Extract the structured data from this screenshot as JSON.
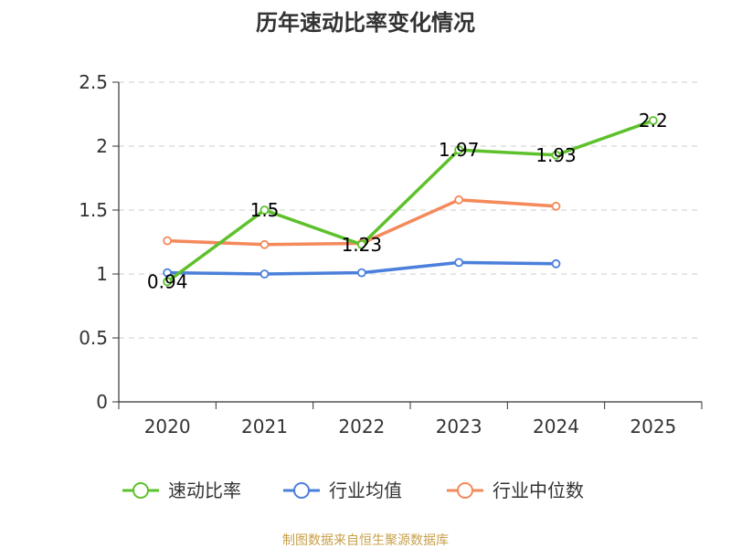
{
  "chart_data": {
    "type": "line",
    "title": "历年速动比率变化情况",
    "xlabel": "",
    "ylabel": "",
    "categories": [
      "2020",
      "2021",
      "2022",
      "2023",
      "2024",
      "2025"
    ],
    "ylim": [
      0,
      2.5
    ],
    "yticks": [
      "0",
      "0.5",
      "1",
      "1.5",
      "2",
      "2.5"
    ],
    "grid": true,
    "legend_position": "bottom",
    "series": [
      {
        "name": "速动比率",
        "color": "#5ec12b",
        "values": [
          0.94,
          1.5,
          1.23,
          1.97,
          1.93,
          2.2
        ],
        "labels": [
          "0.94",
          "1.5",
          "1.23",
          "1.97",
          "1.93",
          "2.2"
        ]
      },
      {
        "name": "行业均值",
        "color": "#4a7fdb",
        "values": [
          1.01,
          1.0,
          1.01,
          1.09,
          1.08,
          null
        ]
      },
      {
        "name": "行业中位数",
        "color": "#f4895a",
        "values": [
          1.26,
          1.23,
          1.24,
          1.58,
          1.53,
          null
        ]
      }
    ]
  },
  "source_text": "制图数据来自恒生聚源数据库"
}
